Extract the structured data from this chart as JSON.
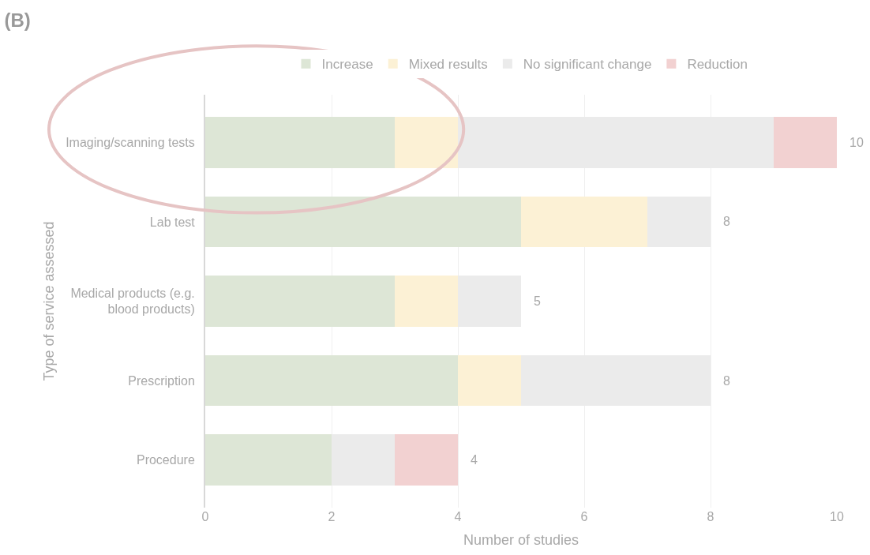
{
  "chart_data": {
    "type": "bar",
    "title": "(B)",
    "orientation": "horizontal",
    "stacked": true,
    "categories": [
      "Imaging/scanning tests",
      "Lab test",
      "Medical products (e.g. blood products)",
      "Prescription",
      "Procedure"
    ],
    "series": [
      {
        "name": "Increase",
        "color": "#dde6d6",
        "values": [
          3,
          5,
          3,
          4,
          2
        ]
      },
      {
        "name": "Mixed results",
        "color": "#fcf1d5",
        "values": [
          1,
          2,
          1,
          1,
          0
        ]
      },
      {
        "name": "No significant change",
        "color": "#ebebeb",
        "values": [
          5,
          1,
          1,
          3,
          1
        ]
      },
      {
        "name": "Reduction",
        "color": "#f2d1d1",
        "values": [
          1,
          0,
          0,
          0,
          1
        ]
      }
    ],
    "totals": [
      "10",
      "8",
      "5",
      "8",
      "4"
    ],
    "xlim": [
      0,
      10
    ],
    "xticks": [
      0,
      2,
      4,
      6,
      8,
      10
    ],
    "xlabel": "Number of studies",
    "ylabel": "Type of service assessed",
    "grid": "x",
    "legend": "top"
  }
}
